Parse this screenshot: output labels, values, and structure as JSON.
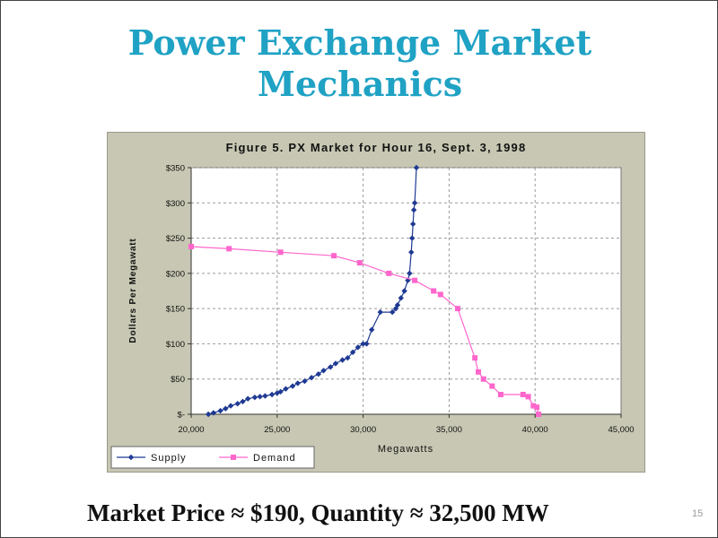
{
  "slide": {
    "title_line1": "Power Exchange Market",
    "title_line2": "Mechanics",
    "caption": "Market Price ≈ $190, Quantity ≈ 32,500 MW",
    "page_number": "15"
  },
  "colors": {
    "title": "#1fa2c4",
    "supply": "#1f3a93",
    "demand": "#ff66cc",
    "plot_bg": "#ffffff",
    "frame_bg": "#c7c7b3"
  },
  "chart_data": {
    "type": "line",
    "title": "Figure 5.  PX Market for Hour 16, Sept. 3, 1998",
    "xlabel": "Megawatts",
    "ylabel": "Dollars Per Megawatt",
    "xlim": [
      20000,
      45000
    ],
    "ylim": [
      0,
      350
    ],
    "x_ticks": [
      20000,
      25000,
      30000,
      35000,
      40000,
      45000
    ],
    "x_tick_labels": [
      "20,000",
      "25,000",
      "30,000",
      "35,000",
      "40,000",
      "45,000"
    ],
    "y_ticks": [
      0,
      50,
      100,
      150,
      200,
      250,
      300,
      350
    ],
    "y_tick_labels": [
      "$-",
      "$50",
      "$100",
      "$150",
      "$200",
      "$250",
      "$300",
      "$350"
    ],
    "grid": true,
    "legend_position": "bottom-left",
    "series": [
      {
        "name": "Supply",
        "marker": "diamond",
        "x": [
          21000,
          21300,
          21700,
          22000,
          22300,
          22700,
          23000,
          23300,
          23700,
          24000,
          24300,
          24700,
          25000,
          25200,
          25500,
          25900,
          26200,
          26600,
          27000,
          27400,
          27700,
          28100,
          28400,
          28800,
          29100,
          29400,
          29700,
          30000,
          30200,
          30500,
          31000,
          31700,
          31900,
          32000,
          32200,
          32400,
          32600,
          32700,
          32800,
          32850,
          32900,
          32950,
          33000,
          33100
        ],
        "y": [
          0,
          2,
          5,
          8,
          12,
          15,
          18,
          22,
          24,
          25,
          26,
          28,
          30,
          32,
          36,
          40,
          44,
          47,
          52,
          57,
          62,
          67,
          72,
          77,
          80,
          88,
          95,
          100,
          100,
          120,
          145,
          145,
          150,
          155,
          165,
          175,
          190,
          200,
          230,
          250,
          270,
          290,
          300,
          350
        ]
      },
      {
        "name": "Demand",
        "marker": "square",
        "x": [
          20000,
          22200,
          25200,
          28300,
          29800,
          31500,
          33000,
          34100,
          34500,
          35500,
          36500,
          36700,
          37000,
          37500,
          38000,
          39300,
          39600,
          39900,
          40100,
          40200
        ],
        "y": [
          238,
          235,
          230,
          225,
          215,
          200,
          190,
          175,
          170,
          150,
          80,
          60,
          50,
          40,
          28,
          28,
          25,
          12,
          10,
          0
        ]
      }
    ]
  }
}
